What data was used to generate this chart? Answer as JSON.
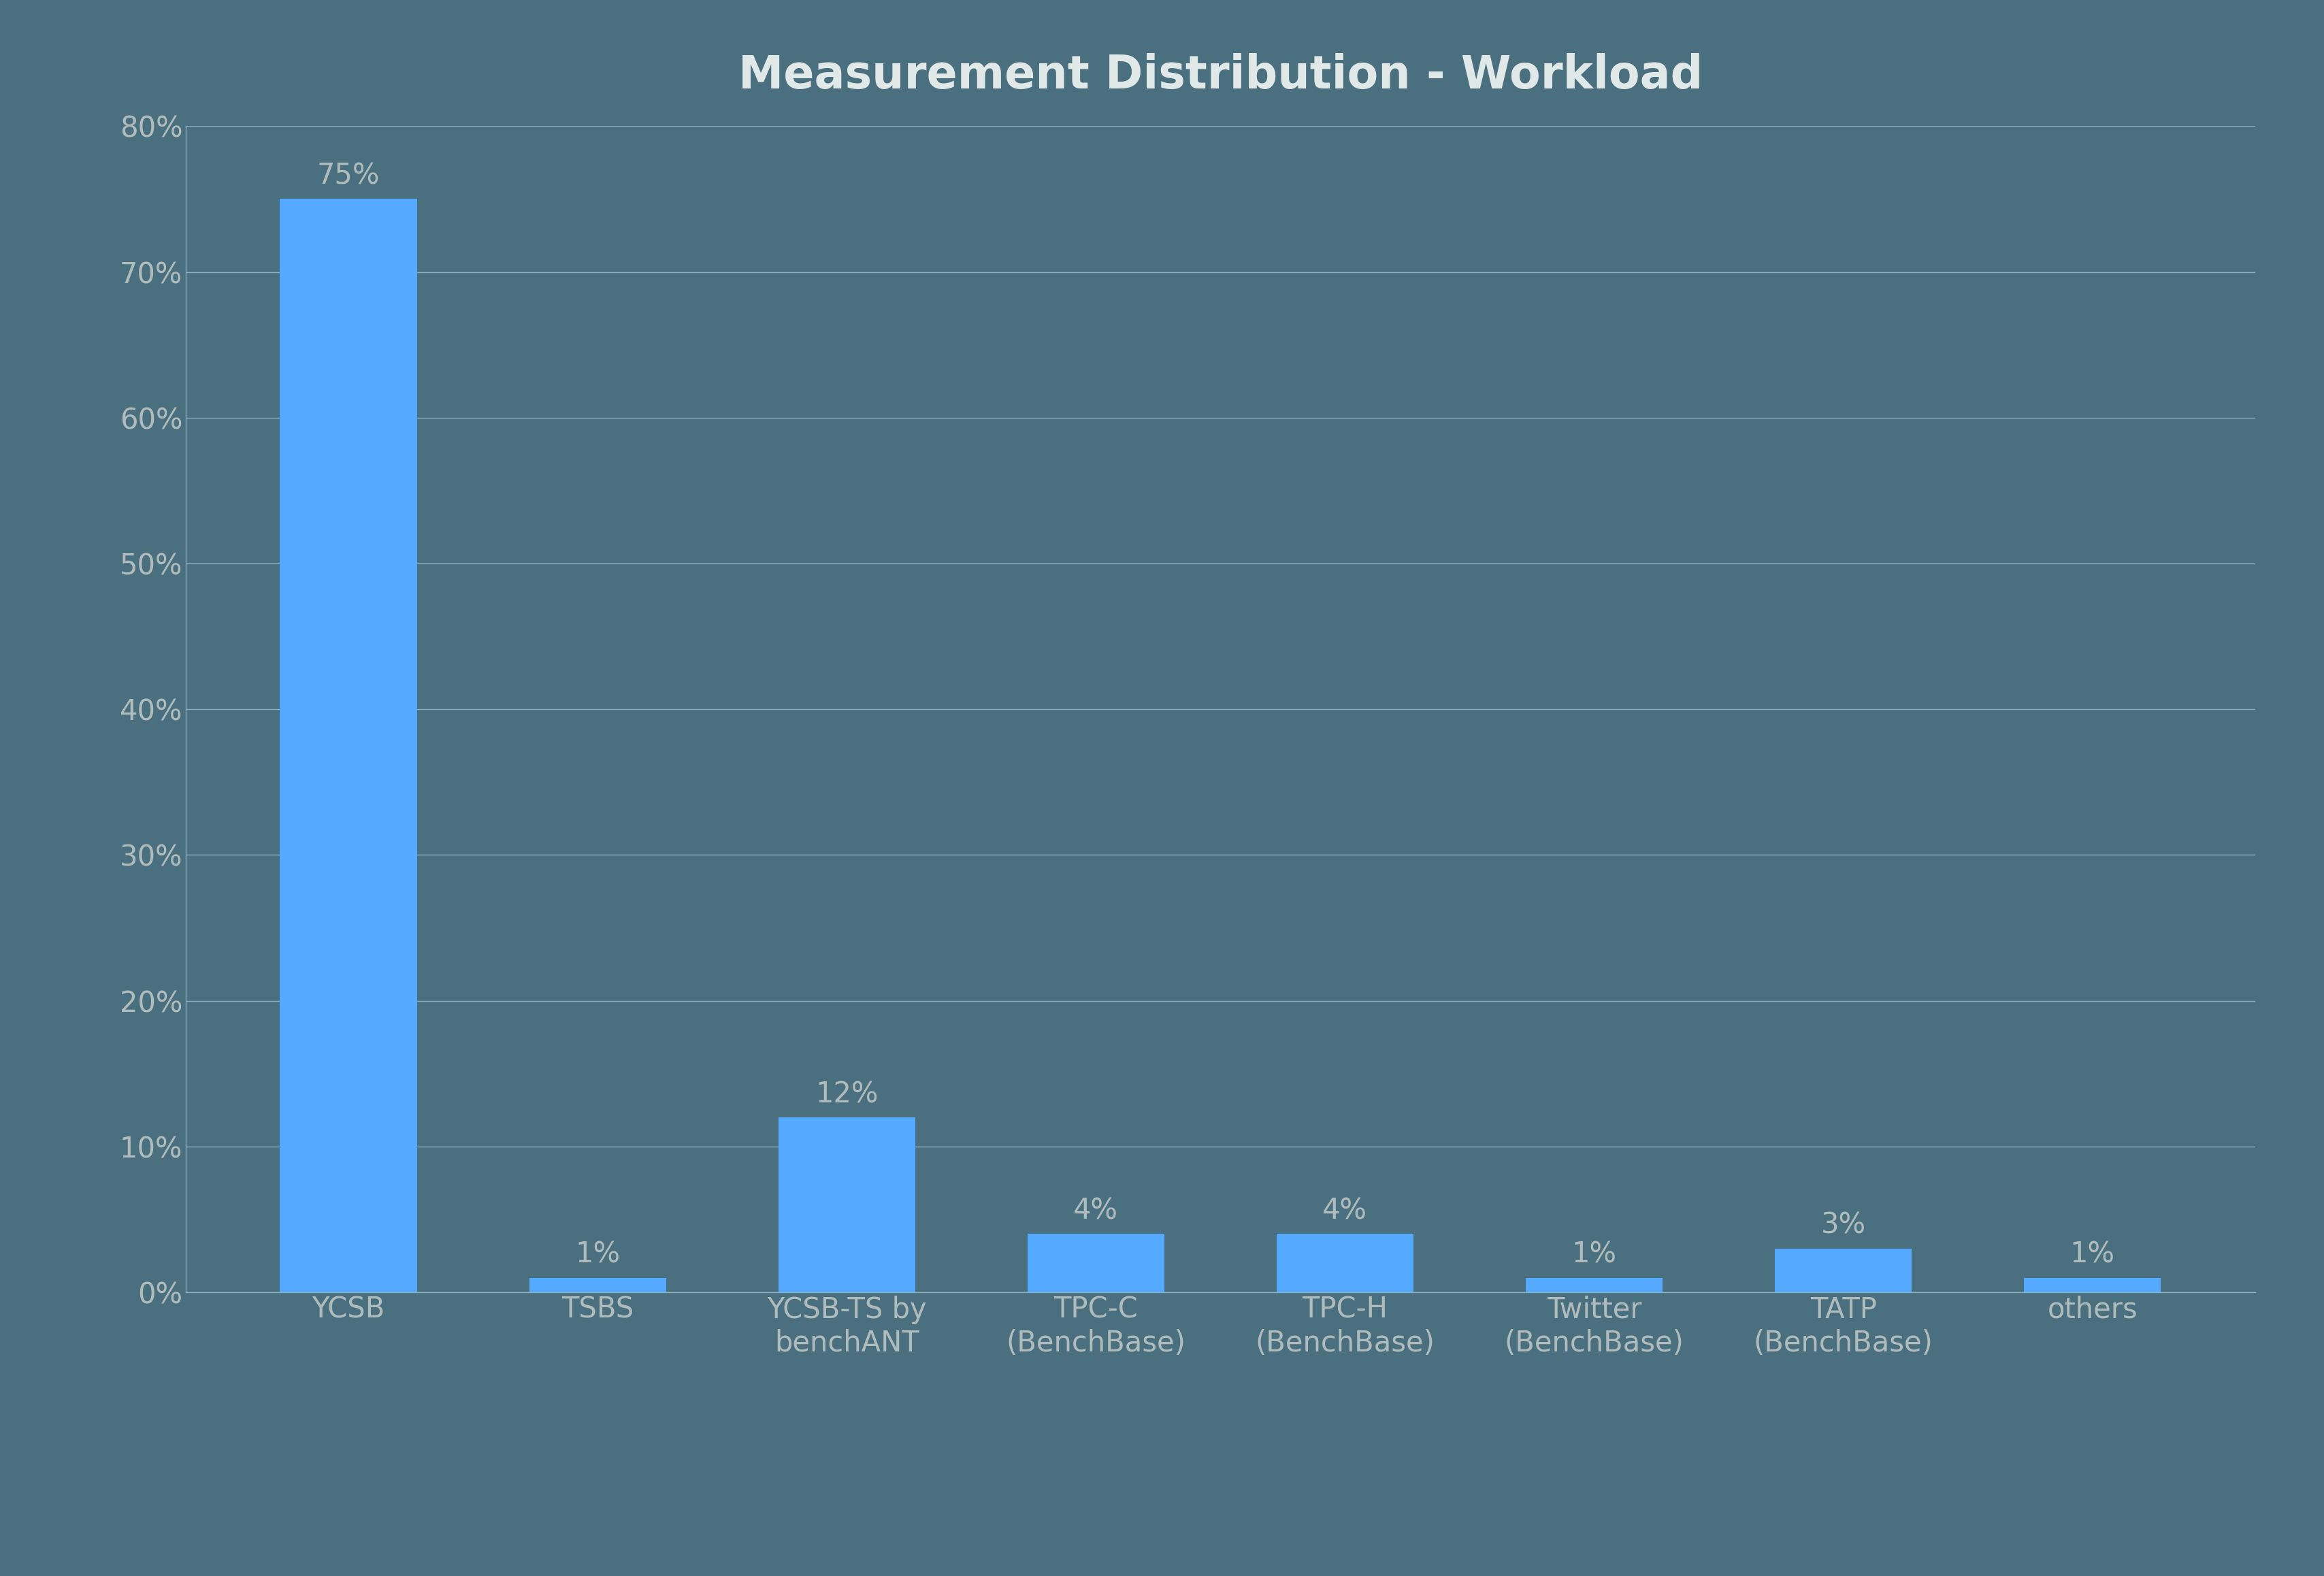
{
  "title": "Measurement Distribution - Workload",
  "categories": [
    "YCSB",
    "TSBS",
    "YCSB-TS by\nbenchANT",
    "TPC-C\n(BenchBase)",
    "TPC-H\n(BenchBase)",
    "Twitter\n(BenchBase)",
    "TATP\n(BenchBase)",
    "others"
  ],
  "values": [
    75,
    1,
    12,
    4,
    4,
    1,
    3,
    1
  ],
  "bar_color": "#55aaff",
  "background_color": "#4a7080",
  "grid_color": "#8ab0bc",
  "text_color": "#b0bcbc",
  "title_color": "#e0e8e8",
  "ylim": [
    0,
    80
  ],
  "yticks": [
    0,
    10,
    20,
    30,
    40,
    50,
    60,
    70,
    80
  ],
  "ytick_labels": [
    "0%",
    "10%",
    "20%",
    "30%",
    "40%",
    "50%",
    "60%",
    "70%",
    "80%"
  ],
  "title_fontsize": 48,
  "tick_fontsize": 30,
  "bar_label_fontsize": 30,
  "bar_width": 0.55
}
